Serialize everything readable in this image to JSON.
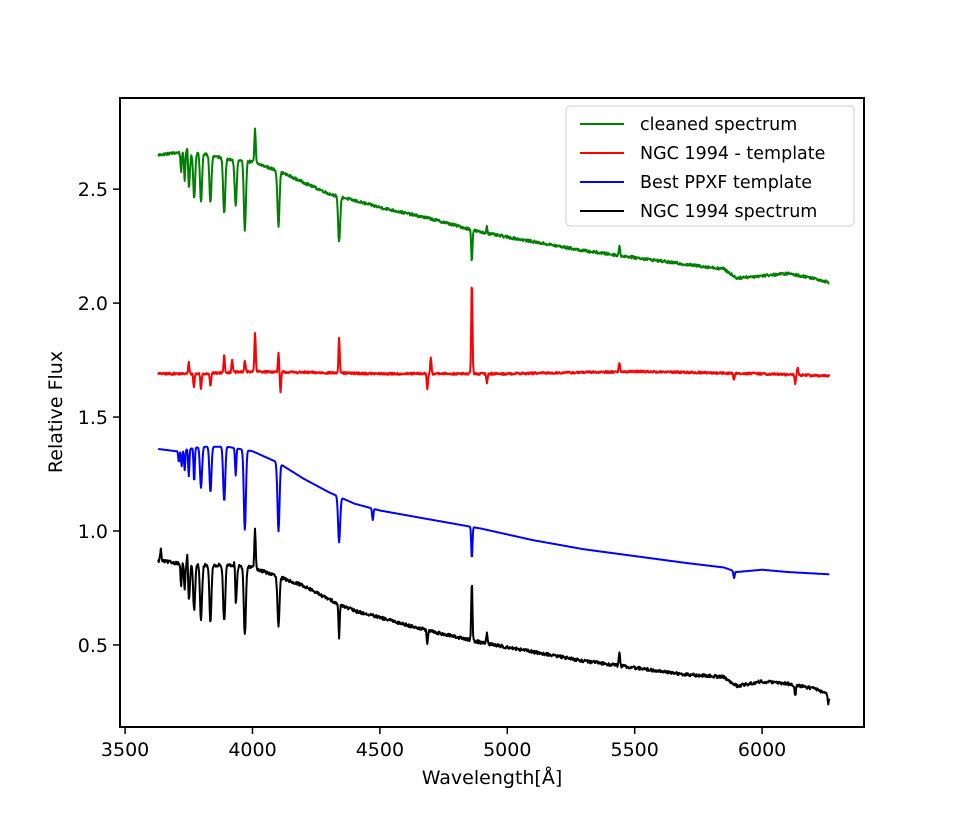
{
  "chart_data": {
    "type": "line",
    "title": "",
    "xlabel": "Wavelength[Å]",
    "ylabel": "Relative Flux",
    "xlim": [
      3480,
      6400
    ],
    "ylim": [
      0.14,
      2.9
    ],
    "x_ticks": [
      3500,
      4000,
      4500,
      5000,
      5500,
      6000
    ],
    "y_ticks": [
      0.5,
      1.0,
      1.5,
      2.0,
      2.5
    ],
    "x_tick_labels": [
      "3500",
      "4000",
      "4500",
      "5000",
      "5500",
      "6000"
    ],
    "y_tick_labels": [
      "0.5",
      "1.0",
      "1.5",
      "2.0",
      "2.5"
    ],
    "grid": false,
    "legend_position": "top-right",
    "x_range": [
      3630,
      6265
    ],
    "series": [
      {
        "name": "cleaned spectrum",
        "color": "#008000",
        "continuum": [
          [
            3630,
            2.65
          ],
          [
            3700,
            2.66
          ],
          [
            3800,
            2.66
          ],
          [
            3900,
            2.63
          ],
          [
            4000,
            2.62
          ],
          [
            4100,
            2.58
          ],
          [
            4200,
            2.53
          ],
          [
            4300,
            2.48
          ],
          [
            4400,
            2.45
          ],
          [
            4500,
            2.42
          ],
          [
            4700,
            2.37
          ],
          [
            4900,
            2.31
          ],
          [
            5100,
            2.27
          ],
          [
            5300,
            2.23
          ],
          [
            5500,
            2.2
          ],
          [
            5700,
            2.17
          ],
          [
            5850,
            2.15
          ],
          [
            5900,
            2.11
          ],
          [
            6000,
            2.12
          ],
          [
            6100,
            2.13
          ],
          [
            6200,
            2.11
          ],
          [
            6265,
            2.09
          ]
        ],
        "noise": 0.006,
        "features": [
          [
            3720,
            -0.08
          ],
          [
            3734,
            -0.12
          ],
          [
            3750,
            -0.16
          ],
          [
            3771,
            -0.2
          ],
          [
            3798,
            -0.22
          ],
          [
            3835,
            -0.21
          ],
          [
            3889,
            -0.24
          ],
          [
            3934,
            -0.2
          ],
          [
            3970,
            -0.3
          ],
          [
            4102,
            -0.24
          ],
          [
            4340,
            -0.2
          ],
          [
            4861,
            -0.14
          ],
          [
            4010,
            0.15
          ],
          [
            3745,
            0.08
          ],
          [
            5440,
            0.04
          ],
          [
            4920,
            0.03
          ]
        ]
      },
      {
        "name": "NGC 1994 - template",
        "color": "#ff0000",
        "continuum": [
          [
            3630,
            1.69
          ],
          [
            3800,
            1.69
          ],
          [
            4000,
            1.7
          ],
          [
            4500,
            1.69
          ],
          [
            5000,
            1.69
          ],
          [
            5500,
            1.7
          ],
          [
            6000,
            1.69
          ],
          [
            6265,
            1.68
          ]
        ],
        "noise": 0.005,
        "features": [
          [
            3750,
            0.05
          ],
          [
            3770,
            -0.06
          ],
          [
            3798,
            -0.07
          ],
          [
            3835,
            -0.06
          ],
          [
            3889,
            0.08
          ],
          [
            3920,
            0.06
          ],
          [
            3970,
            0.05
          ],
          [
            4010,
            0.17
          ],
          [
            4102,
            0.08
          ],
          [
            4110,
            -0.09
          ],
          [
            4340,
            0.15
          ],
          [
            4686,
            -0.07
          ],
          [
            4700,
            0.07
          ],
          [
            4861,
            0.41
          ],
          [
            4920,
            -0.04
          ],
          [
            5440,
            0.04
          ],
          [
            5890,
            -0.03
          ],
          [
            6130,
            -0.04
          ],
          [
            6140,
            0.03
          ]
        ]
      },
      {
        "name": "Best PPXF template",
        "color": "#0000ff",
        "continuum": [
          [
            3630,
            1.36
          ],
          [
            3700,
            1.35
          ],
          [
            3800,
            1.37
          ],
          [
            3900,
            1.37
          ],
          [
            4000,
            1.35
          ],
          [
            4100,
            1.3
          ],
          [
            4200,
            1.23
          ],
          [
            4300,
            1.17
          ],
          [
            4400,
            1.12
          ],
          [
            4500,
            1.09
          ],
          [
            4700,
            1.05
          ],
          [
            4900,
            1.01
          ],
          [
            5100,
            0.96
          ],
          [
            5300,
            0.92
          ],
          [
            5500,
            0.89
          ],
          [
            5700,
            0.86
          ],
          [
            5850,
            0.84
          ],
          [
            5900,
            0.82
          ],
          [
            6000,
            0.83
          ],
          [
            6100,
            0.82
          ],
          [
            6265,
            0.81
          ]
        ],
        "noise": 0.0,
        "features": [
          [
            3711,
            -0.05
          ],
          [
            3722,
            -0.07
          ],
          [
            3734,
            -0.09
          ],
          [
            3750,
            -0.12
          ],
          [
            3771,
            -0.15
          ],
          [
            3798,
            -0.18
          ],
          [
            3835,
            -0.2
          ],
          [
            3889,
            -0.24
          ],
          [
            3934,
            -0.12
          ],
          [
            3970,
            -0.35
          ],
          [
            4102,
            -0.3
          ],
          [
            4340,
            -0.2
          ],
          [
            4472,
            -0.05
          ],
          [
            4861,
            -0.14
          ],
          [
            5890,
            -0.03
          ]
        ]
      },
      {
        "name": "NGC 1994 spectrum",
        "color": "#000000",
        "continuum": [
          [
            3630,
            0.87
          ],
          [
            3700,
            0.86
          ],
          [
            3800,
            0.85
          ],
          [
            3900,
            0.85
          ],
          [
            4000,
            0.84
          ],
          [
            4100,
            0.8
          ],
          [
            4200,
            0.76
          ],
          [
            4300,
            0.7
          ],
          [
            4400,
            0.65
          ],
          [
            4500,
            0.62
          ],
          [
            4700,
            0.56
          ],
          [
            4900,
            0.51
          ],
          [
            5100,
            0.47
          ],
          [
            5300,
            0.43
          ],
          [
            5500,
            0.4
          ],
          [
            5700,
            0.37
          ],
          [
            5850,
            0.36
          ],
          [
            5900,
            0.32
          ],
          [
            6000,
            0.34
          ],
          [
            6100,
            0.33
          ],
          [
            6200,
            0.31
          ],
          [
            6265,
            0.28
          ]
        ],
        "noise": 0.007,
        "features": [
          [
            3720,
            -0.1
          ],
          [
            3734,
            -0.12
          ],
          [
            3750,
            -0.17
          ],
          [
            3771,
            -0.2
          ],
          [
            3798,
            -0.24
          ],
          [
            3835,
            -0.25
          ],
          [
            3889,
            -0.25
          ],
          [
            3934,
            -0.18
          ],
          [
            3970,
            -0.3
          ],
          [
            4102,
            -0.22
          ],
          [
            4340,
            -0.15
          ],
          [
            4861,
            0.26
          ],
          [
            4010,
            0.18
          ],
          [
            3745,
            0.1
          ],
          [
            3640,
            0.05
          ],
          [
            3930,
            0.1
          ],
          [
            4686,
            -0.06
          ],
          [
            4920,
            0.05
          ],
          [
            5440,
            0.06
          ],
          [
            6130,
            -0.05
          ],
          [
            6260,
            -0.04
          ]
        ]
      }
    ]
  }
}
